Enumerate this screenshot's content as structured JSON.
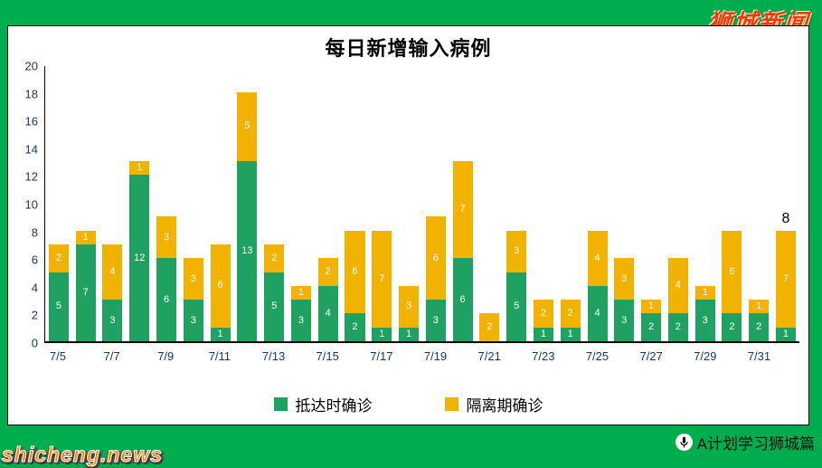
{
  "page": {
    "background_color": "#00ad4e",
    "top_right_logo": "狮城新闻",
    "bottom_left_watermark": "shicheng.news",
    "bottom_right_credit": "A计划学习狮城篇"
  },
  "chart_data": {
    "type": "bar",
    "subtype": "stacked",
    "title": "每日新增输入病例",
    "xlabel": "",
    "ylabel": "",
    "ylim": [
      0,
      20
    ],
    "ytick_step": 2,
    "grid": false,
    "legend_position": "bottom",
    "x_dates": [
      "7/5",
      "7/6",
      "7/7",
      "7/8",
      "7/9",
      "7/10",
      "7/11",
      "7/12",
      "7/13",
      "7/14",
      "7/15",
      "7/16",
      "7/17",
      "7/18",
      "7/19",
      "7/20",
      "7/21",
      "7/22",
      "7/23",
      "7/24",
      "7/25",
      "7/26",
      "7/27",
      "7/28",
      "7/29",
      "7/30",
      "7/31",
      "8/1"
    ],
    "xtick_labels": [
      "7/5",
      "7/7",
      "7/9",
      "7/11",
      "7/13",
      "7/15",
      "7/17",
      "7/19",
      "7/21",
      "7/23",
      "7/25",
      "7/27",
      "7/29",
      "7/31"
    ],
    "series": [
      {
        "name": "抵达时确诊",
        "color": "#1fa162",
        "values": [
          5,
          7,
          3,
          12,
          6,
          3,
          1,
          13,
          5,
          3,
          4,
          2,
          1,
          1,
          3,
          6,
          0,
          5,
          1,
          1,
          4,
          3,
          2,
          2,
          3,
          2,
          2,
          1
        ]
      },
      {
        "name": "隔离期确诊",
        "color": "#f2b200",
        "values": [
          2,
          1,
          4,
          1,
          3,
          3,
          6,
          5,
          2,
          1,
          2,
          6,
          7,
          3,
          6,
          7,
          2,
          3,
          2,
          2,
          4,
          3,
          1,
          4,
          1,
          6,
          1,
          7
        ]
      }
    ],
    "totals": [
      7,
      8,
      7,
      13,
      9,
      6,
      7,
      18,
      7,
      4,
      6,
      8,
      8,
      4,
      9,
      13,
      2,
      8,
      3,
      3,
      8,
      6,
      3,
      6,
      4,
      8,
      3,
      8
    ],
    "last_bar_total_label": "8"
  }
}
